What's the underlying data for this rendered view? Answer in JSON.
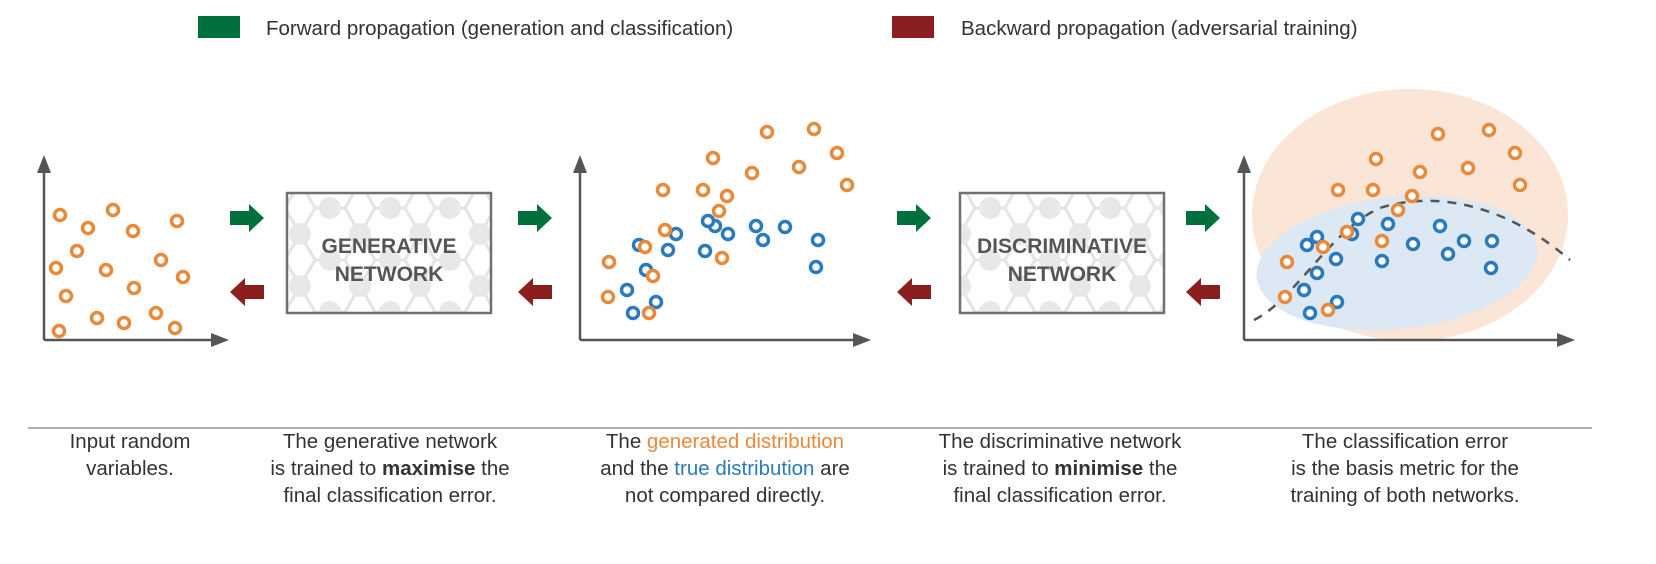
{
  "colors": {
    "forward": "#00703c",
    "backward": "#8b1f1f",
    "generated": "#e88a3c",
    "true": "#2b7bba",
    "axis": "#555555",
    "box_border": "#707070",
    "generated_region": "#fbe5d6",
    "true_region": "#dce8f3"
  },
  "legend": {
    "forward": {
      "label": "Forward propagation (generation and classification)",
      "color": "#00703c"
    },
    "backward": {
      "label": "Backward propagation (adversarial training)",
      "color": "#8b1f1f"
    }
  },
  "networks": {
    "generative": {
      "line1": "GENERATIVE",
      "line2": "NETWORK"
    },
    "discriminative": {
      "line1": "DISCRIMINATIVE",
      "line2": "NETWORK"
    }
  },
  "captions": {
    "input": {
      "line1": "Input random",
      "line2": "variables."
    },
    "generative": {
      "line1": "The generative network",
      "line2_pre": "is trained to ",
      "line2_bold": "maximise",
      "line2_post": " the",
      "line3": "final classification error."
    },
    "distribution": {
      "line1_pre": "The ",
      "line1_gen": "generated distribution",
      "line2_pre": "and the ",
      "line2_true": "true distribution",
      "line2_post": " are",
      "line3": "not compared directly."
    },
    "discriminative": {
      "line1": "The discriminative network",
      "line2_pre": "is trained to ",
      "line2_bold": "minimise",
      "line2_post": " the",
      "line3": "final classification error."
    },
    "error": {
      "line1": "The classification error",
      "line2": "is the basis metric for the",
      "line3": "training of both networks."
    }
  }
}
